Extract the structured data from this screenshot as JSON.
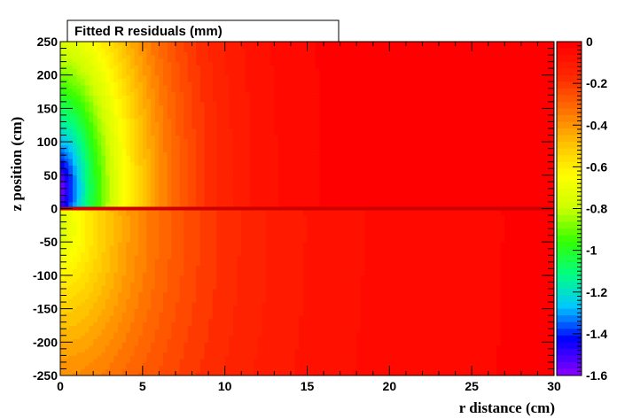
{
  "chart_data": {
    "type": "heatmap",
    "title": "Fitted R residuals (mm)",
    "xlabel": "r distance (cm)",
    "ylabel": "z position (cm)",
    "xlim": [
      0,
      30
    ],
    "ylim": [
      -250,
      250
    ],
    "zlim": [
      -1.6,
      0
    ],
    "x_ticks": [
      "0",
      "5",
      "10",
      "15",
      "20",
      "25",
      "30"
    ],
    "y_ticks": [
      "-250",
      "-200",
      "-150",
      "-100",
      "-50",
      "0",
      "50",
      "100",
      "150",
      "200",
      "250"
    ],
    "z_ticks": [
      "0",
      "-0.2",
      "-0.4",
      "-0.6",
      "-0.8",
      "-1",
      "-1.2",
      "-1.4",
      "-1.6"
    ],
    "colormap": [
      "#7f00ff",
      "#0000ff",
      "#00c8ff",
      "#00ff80",
      "#33ff00",
      "#ccff00",
      "#ffff00",
      "#ffc000",
      "#ff7000",
      "#ff2a00",
      "#ff0000"
    ],
    "sample_values": [
      {
        "r": 0.5,
        "z": 20,
        "value": -1.5
      },
      {
        "r": 1.5,
        "z": 50,
        "value": -1.1
      },
      {
        "r": 1.0,
        "z": 200,
        "value": -0.6
      },
      {
        "r": 5,
        "z": 100,
        "value": -0.45
      },
      {
        "r": 10,
        "z": 50,
        "value": -0.2
      },
      {
        "r": 20,
        "z": 200,
        "value": -0.02
      },
      {
        "r": 1,
        "z": -100,
        "value": -0.4
      },
      {
        "r": 10,
        "z": -150,
        "value": -0.12
      },
      {
        "r": 20,
        "z": -150,
        "value": -0.04
      }
    ]
  }
}
